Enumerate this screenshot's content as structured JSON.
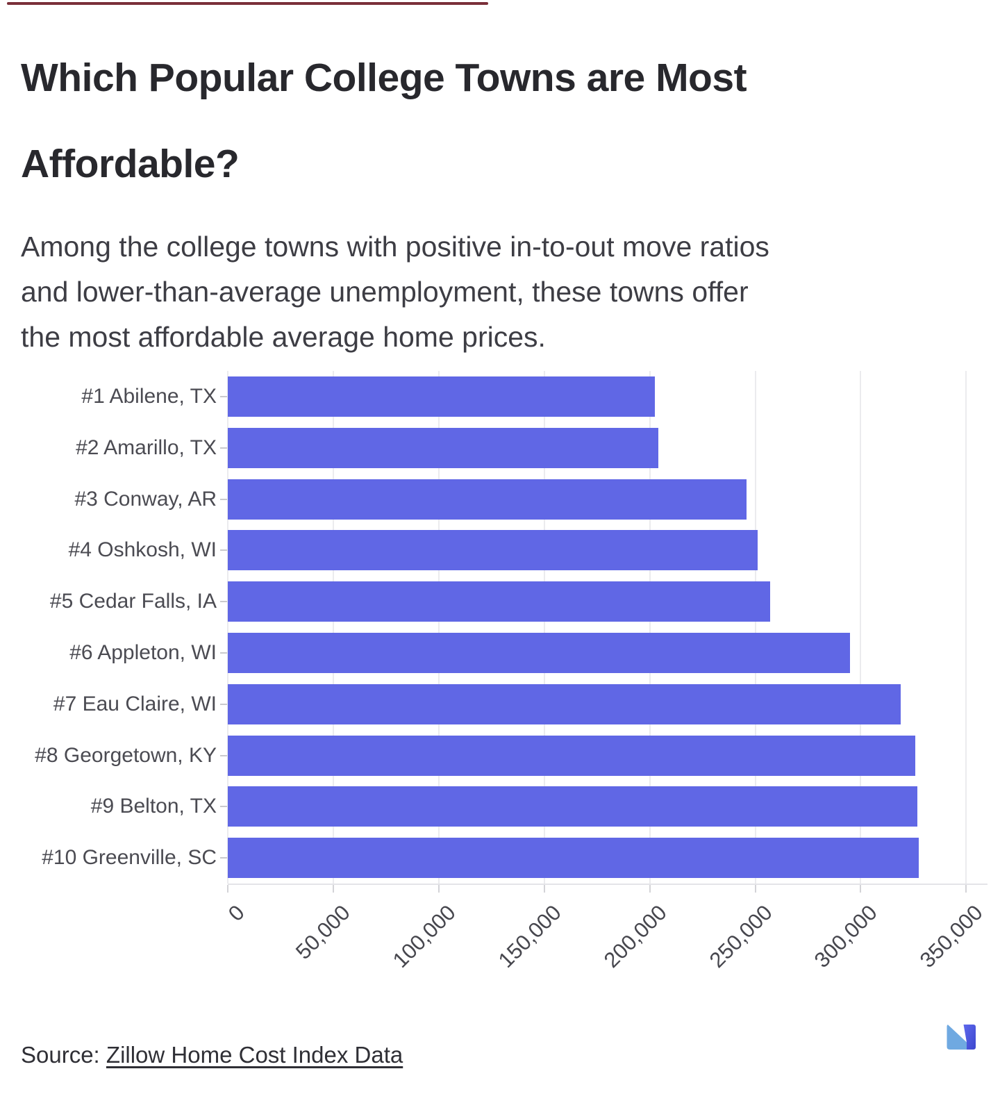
{
  "page": {
    "top_accent_color": "#6f1d28",
    "title_line1": "Which Popular College Towns are Most",
    "title_line2": "Affordable?",
    "subtitle_lines": [
      "Among the college towns with positive in-to-out move ratios",
      "and lower-than-average unemployment, these towns offer",
      "the most affordable average home prices."
    ],
    "source_label": "Source: ",
    "source_link_text": "Zillow Home Cost Index Data"
  },
  "chart_data": {
    "type": "bar",
    "orientation": "horizontal",
    "title": "",
    "xlabel": "",
    "ylabel": "",
    "categories": [
      "#1 Abilene, TX",
      "#2 Amarillo, TX",
      "#3 Conway, AR",
      "#4 Oshkosh, WI",
      "#5 Cedar Falls, IA",
      "#6 Appleton, WI",
      "#7 Eau Claire, WI",
      "#8 Georgetown, KY",
      "#9 Belton, TX",
      "#10 Greenville, SC"
    ],
    "values": [
      202500,
      204000,
      246000,
      251000,
      257000,
      295000,
      319000,
      326000,
      327000,
      327500
    ],
    "xlim": [
      0,
      350000
    ],
    "x_tick_values": [
      0,
      50000,
      100000,
      150000,
      200000,
      250000,
      300000,
      350000
    ],
    "x_tick_labels": [
      "0",
      "50,000",
      "100,000",
      "150,000",
      "200,000",
      "250,000",
      "300,000",
      "350,000"
    ],
    "x_tick_angle": -45,
    "grid": true,
    "legend": false,
    "bar_color": "#6067e5"
  },
  "logo": {
    "name": "movebuddha-logo",
    "light_color": "#6fa9e1",
    "dark_color_top": "#5e68ec",
    "dark_color_bottom": "#3c47ce"
  }
}
